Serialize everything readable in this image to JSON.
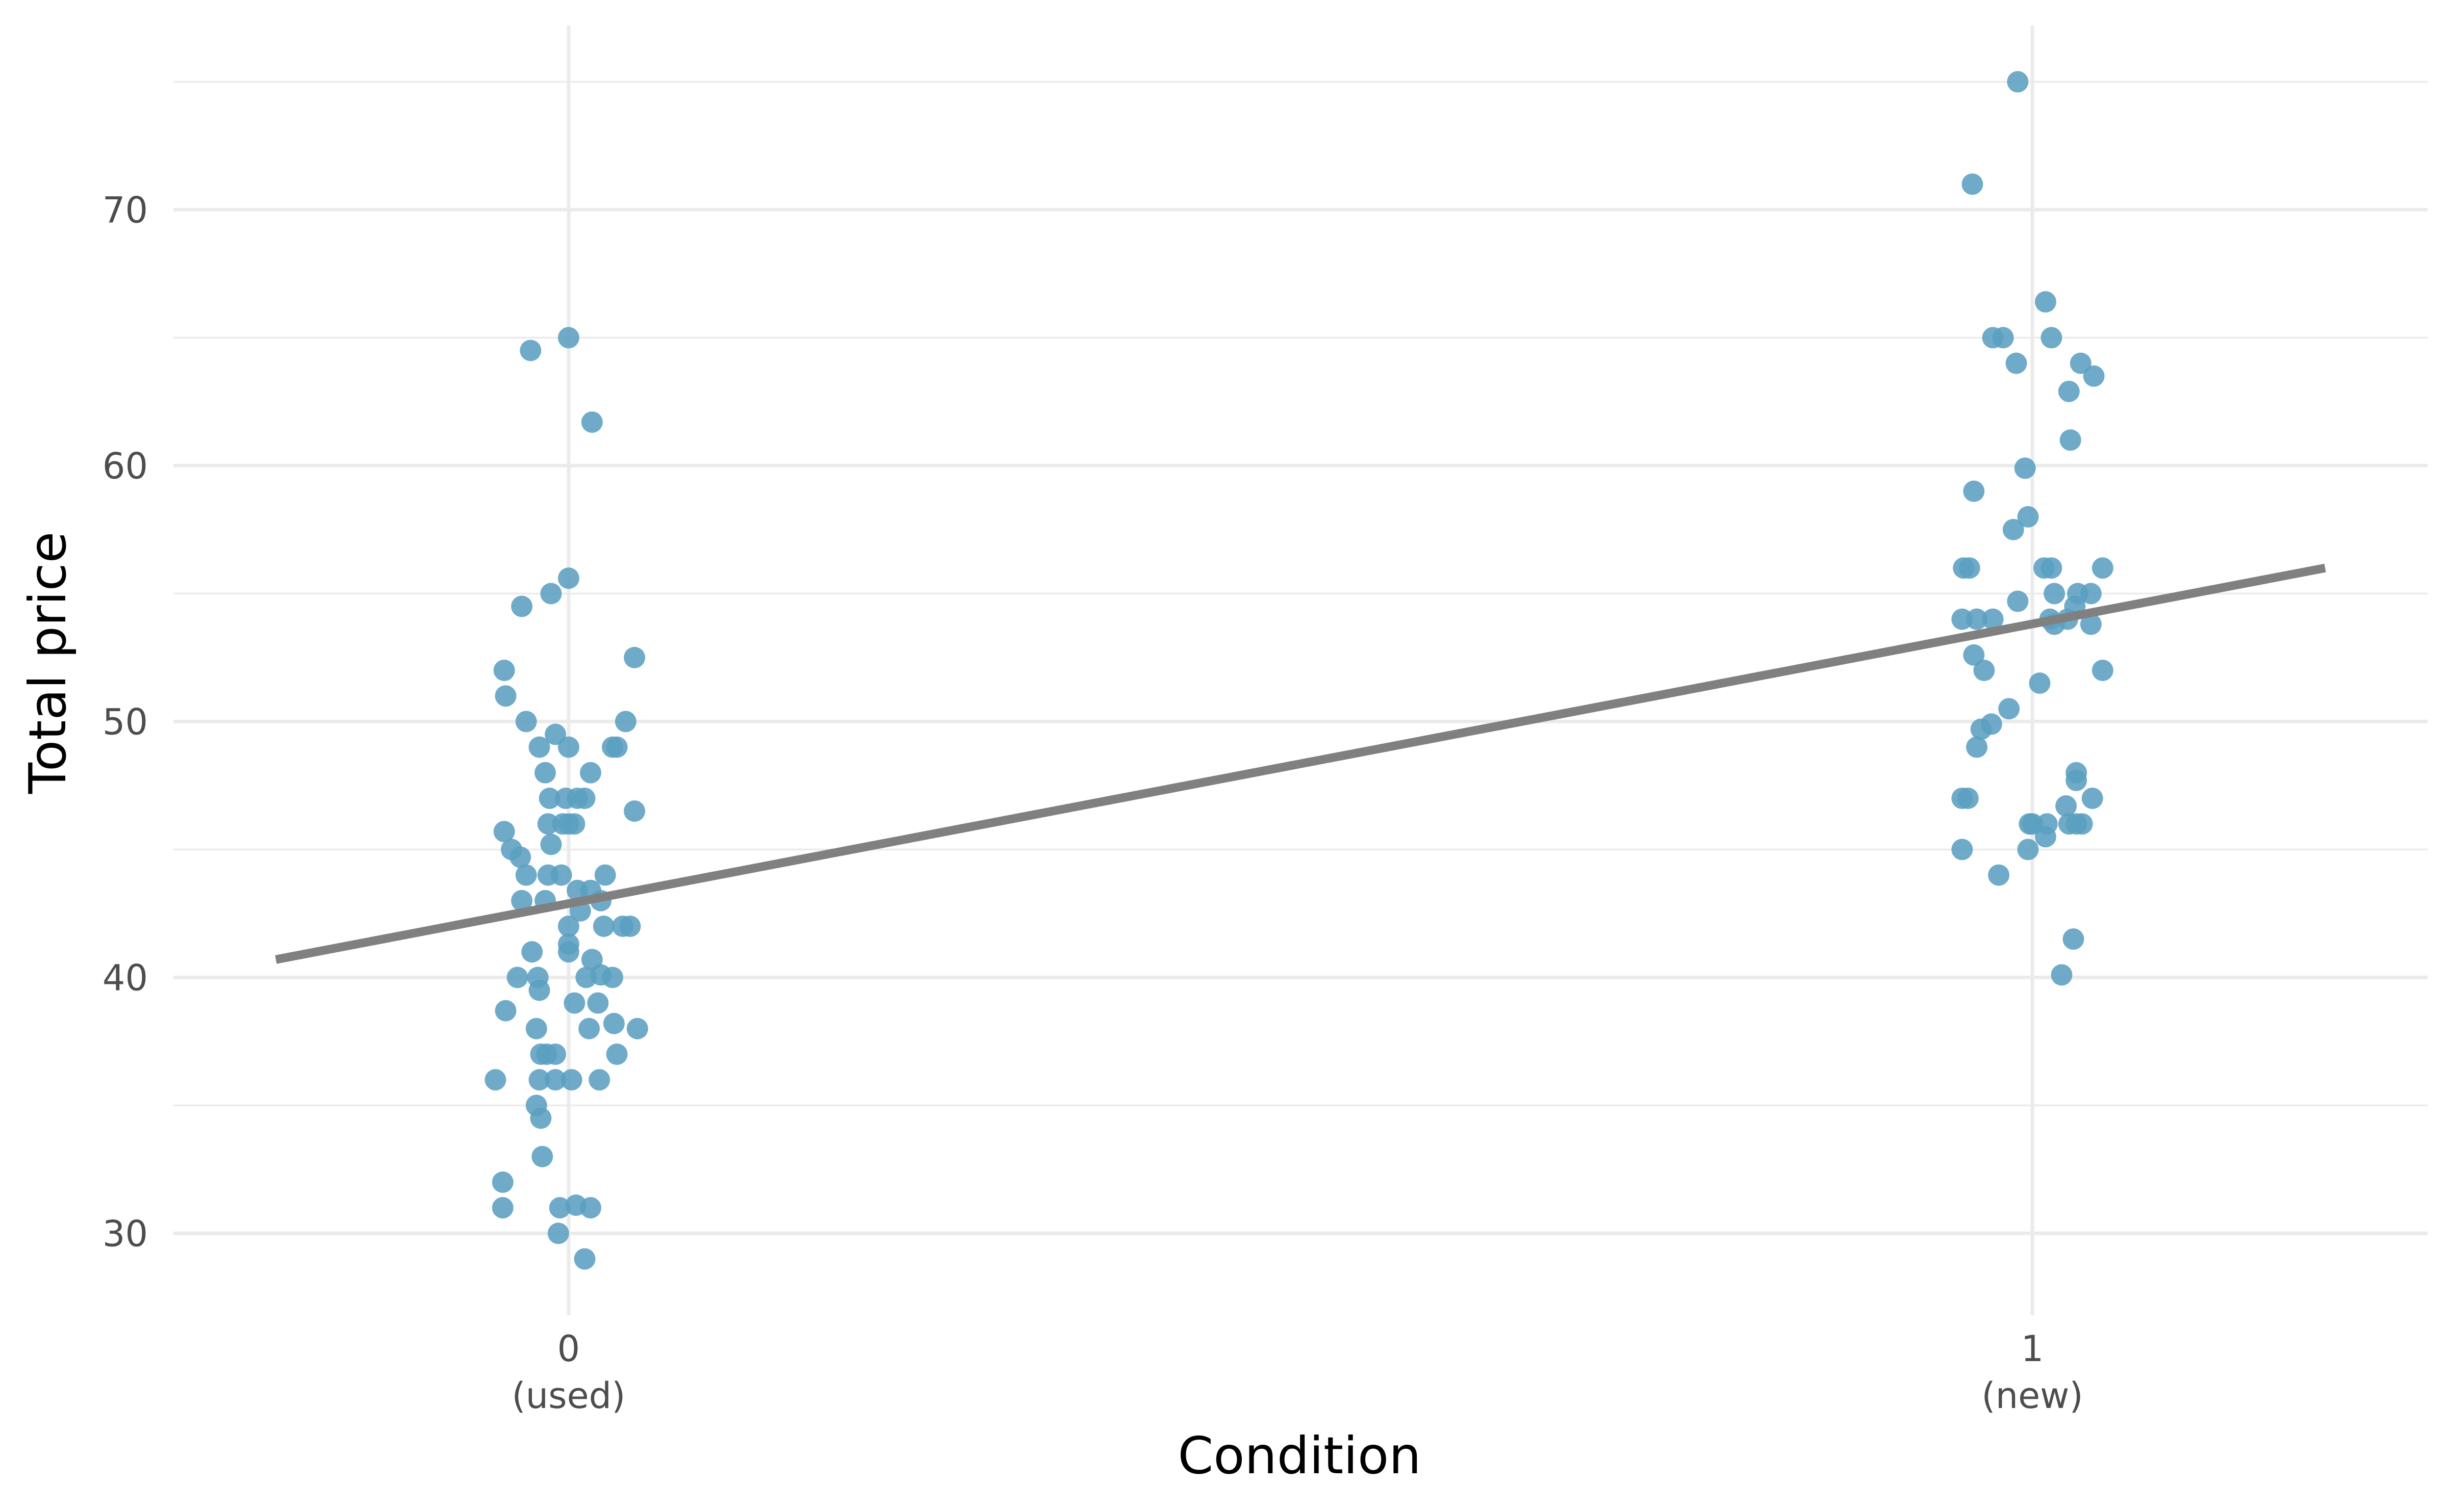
{
  "chart_data": {
    "type": "scatter",
    "xlabel": "Condition",
    "ylabel": "Total price",
    "xlim": [
      -0.27,
      1.27
    ],
    "ylim": [
      26.8,
      77.2
    ],
    "x_ticks": [
      {
        "value": 0,
        "label": "0",
        "sublabel": "(used)"
      },
      {
        "value": 1,
        "label": "1",
        "sublabel": "(new)"
      }
    ],
    "y_ticks": [
      30,
      40,
      50,
      60,
      70
    ],
    "y_minor_ticks": [
      35,
      45,
      55,
      65,
      75
    ],
    "grid": true,
    "legend": "none",
    "point_color": "#5b9fc0",
    "line_color": "#808080",
    "series": [
      {
        "values": [
          [
            -0.026,
            64.5
          ],
          [
            0.0,
            65.0
          ],
          [
            0.016,
            61.7
          ],
          [
            0.0,
            55.6
          ],
          [
            -0.012,
            55.0
          ],
          [
            -0.032,
            54.5
          ],
          [
            0.045,
            52.5
          ],
          [
            -0.044,
            52.0
          ],
          [
            -0.043,
            51.0
          ],
          [
            -0.029,
            50.0
          ],
          [
            0.039,
            50.0
          ],
          [
            -0.009,
            49.5
          ],
          [
            -0.02,
            49.0
          ],
          [
            0.0,
            49.0
          ],
          [
            0.03,
            49.0
          ],
          [
            0.033,
            49.0
          ],
          [
            -0.016,
            48.0
          ],
          [
            0.015,
            48.0
          ],
          [
            -0.013,
            47.0
          ],
          [
            -0.002,
            47.0
          ],
          [
            0.006,
            47.0
          ],
          [
            0.011,
            47.0
          ],
          [
            0.045,
            46.5
          ],
          [
            -0.014,
            46.0
          ],
          [
            -0.004,
            46.0
          ],
          [
            0.0,
            46.0
          ],
          [
            0.004,
            46.0
          ],
          [
            -0.044,
            45.7
          ],
          [
            -0.012,
            45.2
          ],
          [
            -0.039,
            45.0
          ],
          [
            -0.033,
            44.7
          ],
          [
            -0.029,
            44.0
          ],
          [
            -0.014,
            44.0
          ],
          [
            -0.005,
            44.0
          ],
          [
            0.025,
            44.0
          ],
          [
            0.006,
            43.4
          ],
          [
            0.015,
            43.4
          ],
          [
            -0.032,
            43.0
          ],
          [
            -0.016,
            43.0
          ],
          [
            0.022,
            43.0
          ],
          [
            0.008,
            42.6
          ],
          [
            0.0,
            42.0
          ],
          [
            0.024,
            42.0
          ],
          [
            0.037,
            42.0
          ],
          [
            0.042,
            42.0
          ],
          [
            0.0,
            41.3
          ],
          [
            0.0,
            41.0
          ],
          [
            -0.025,
            41.0
          ],
          [
            0.016,
            40.7
          ],
          [
            -0.035,
            40.0
          ],
          [
            -0.021,
            40.0
          ],
          [
            0.012,
            40.0
          ],
          [
            0.022,
            40.1
          ],
          [
            0.03,
            40.0
          ],
          [
            -0.02,
            39.5
          ],
          [
            0.004,
            39.0
          ],
          [
            0.02,
            39.0
          ],
          [
            -0.043,
            38.7
          ],
          [
            0.031,
            38.2
          ],
          [
            -0.022,
            38.0
          ],
          [
            0.014,
            38.0
          ],
          [
            0.047,
            38.0
          ],
          [
            -0.019,
            37.0
          ],
          [
            -0.015,
            37.0
          ],
          [
            -0.009,
            37.0
          ],
          [
            0.033,
            37.0
          ],
          [
            -0.05,
            36.0
          ],
          [
            -0.02,
            36.0
          ],
          [
            -0.009,
            36.0
          ],
          [
            0.002,
            36.0
          ],
          [
            0.021,
            36.0
          ],
          [
            -0.022,
            35.0
          ],
          [
            -0.019,
            34.5
          ],
          [
            -0.018,
            33.0
          ],
          [
            -0.045,
            32.0
          ],
          [
            -0.045,
            31.0
          ],
          [
            -0.006,
            31.0
          ],
          [
            0.005,
            31.1
          ],
          [
            0.015,
            31.0
          ],
          [
            -0.007,
            30.0
          ],
          [
            0.011,
            29.0
          ],
          [
            0.99,
            75.0
          ],
          [
            0.959,
            71.0
          ],
          [
            1.009,
            66.4
          ],
          [
            0.973,
            65.0
          ],
          [
            0.98,
            65.0
          ],
          [
            1.013,
            65.0
          ],
          [
            1.033,
            64.0
          ],
          [
            0.989,
            64.0
          ],
          [
            1.042,
            63.5
          ],
          [
            1.025,
            62.9
          ],
          [
            1.026,
            61.0
          ],
          [
            0.995,
            59.9
          ],
          [
            0.96,
            59.0
          ],
          [
            0.997,
            58.0
          ],
          [
            0.987,
            57.5
          ],
          [
            0.953,
            56.0
          ],
          [
            0.957,
            56.0
          ],
          [
            1.008,
            56.0
          ],
          [
            1.013,
            56.0
          ],
          [
            1.048,
            56.0
          ],
          [
            1.015,
            55.0
          ],
          [
            1.031,
            55.0
          ],
          [
            1.04,
            55.0
          ],
          [
            0.99,
            54.7
          ],
          [
            1.029,
            54.5
          ],
          [
            0.952,
            54.0
          ],
          [
            0.962,
            54.0
          ],
          [
            0.973,
            54.0
          ],
          [
            1.012,
            54.0
          ],
          [
            1.024,
            54.0
          ],
          [
            1.015,
            53.8
          ],
          [
            1.04,
            53.8
          ],
          [
            0.96,
            52.6
          ],
          [
            0.967,
            52.0
          ],
          [
            1.048,
            52.0
          ],
          [
            1.005,
            51.5
          ],
          [
            0.984,
            50.5
          ],
          [
            0.972,
            49.9
          ],
          [
            0.965,
            49.7
          ],
          [
            0.962,
            49.0
          ],
          [
            1.03,
            48.0
          ],
          [
            1.03,
            47.7
          ],
          [
            0.952,
            47.0
          ],
          [
            0.956,
            47.0
          ],
          [
            1.041,
            47.0
          ],
          [
            1.023,
            46.7
          ],
          [
            1.0,
            46.0
          ],
          [
            0.998,
            46.0
          ],
          [
            1.01,
            46.0
          ],
          [
            1.025,
            46.0
          ],
          [
            1.03,
            46.0
          ],
          [
            1.034,
            46.0
          ],
          [
            1.009,
            45.5
          ],
          [
            0.952,
            45.0
          ],
          [
            0.997,
            45.0
          ],
          [
            0.977,
            44.0
          ],
          [
            1.028,
            41.5
          ],
          [
            1.02,
            40.1
          ]
        ]
      }
    ],
    "regression_line": {
      "x": [
        -0.2,
        1.2
      ],
      "y": [
        40.7,
        56.0
      ]
    }
  }
}
